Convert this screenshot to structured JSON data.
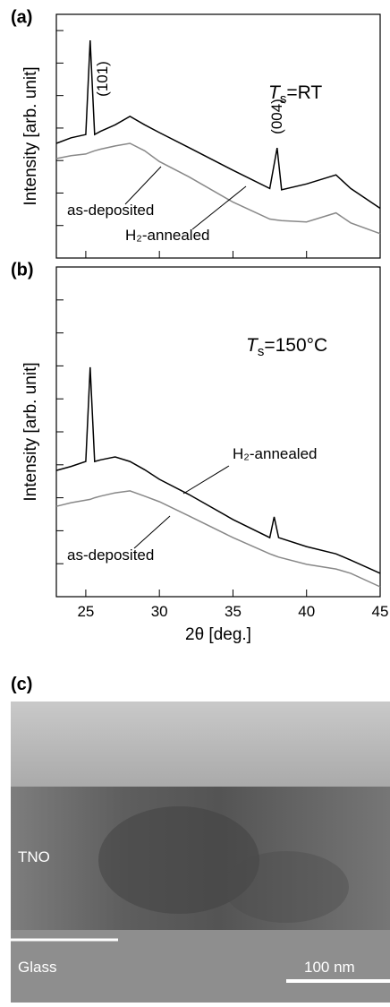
{
  "chart_data": [
    {
      "type": "line",
      "panel": "(a)",
      "ylabel": "Intensity [arb. unit]",
      "xlim": [
        23,
        45
      ],
      "xticks": [
        25,
        30,
        35,
        40,
        45
      ],
      "ylim": [
        0,
        7.5
      ],
      "yticks": [
        1,
        2,
        3,
        4,
        5,
        6,
        7
      ],
      "peak_labels": [
        "(101)",
        "(004)"
      ],
      "condition": {
        "symbol": "T",
        "subscript": "s",
        "text": "=RT"
      },
      "x": [
        23,
        24,
        25,
        25.3,
        25.6,
        26,
        27,
        28,
        29,
        30,
        32,
        35,
        37.5,
        38,
        38.3,
        40,
        42,
        43,
        45
      ],
      "series": [
        {
          "name": "H₂-annealed",
          "color": "#000000",
          "values": [
            3.53,
            3.7,
            3.8,
            6.7,
            3.8,
            3.9,
            4.1,
            4.36,
            4.1,
            3.86,
            3.4,
            2.7,
            2.14,
            3.39,
            2.1,
            2.28,
            2.56,
            2.14,
            1.53
          ]
        },
        {
          "name": "as-deposited",
          "color": "#888888",
          "values": [
            3.06,
            3.15,
            3.2,
            3.25,
            3.3,
            3.35,
            3.45,
            3.53,
            3.3,
            2.97,
            2.5,
            1.72,
            1.2,
            1.17,
            1.15,
            1.11,
            1.39,
            1.08,
            0.75
          ]
        }
      ]
    },
    {
      "type": "line",
      "panel": "(b)",
      "ylabel": "Intensity [arb. unit]",
      "xlabel": "2θ [deg.]",
      "xlim": [
        23,
        45
      ],
      "xticks": [
        25,
        30,
        35,
        40,
        45
      ],
      "ylim": [
        0,
        10
      ],
      "yticks": [
        1,
        2,
        3,
        4,
        5,
        6,
        7,
        8,
        9
      ],
      "condition": {
        "symbol": "T",
        "subscript": "s",
        "text": "=150°C"
      },
      "x": [
        23,
        24,
        25,
        25.3,
        25.6,
        26,
        27,
        28,
        29,
        30,
        32,
        35,
        37.5,
        37.8,
        38.1,
        40,
        42,
        43,
        45
      ],
      "series": [
        {
          "name": "H₂-annealed",
          "color": "#000000",
          "values": [
            3.83,
            3.95,
            4.1,
            6.96,
            4.1,
            4.15,
            4.24,
            4.1,
            3.85,
            3.56,
            3.1,
            2.34,
            1.79,
            2.42,
            1.79,
            1.52,
            1.3,
            1.11,
            0.71
          ]
        },
        {
          "name": "as-deposited",
          "color": "#888888",
          "values": [
            2.74,
            2.85,
            2.93,
            2.95,
            3.0,
            3.05,
            3.15,
            3.21,
            3.05,
            2.88,
            2.45,
            1.79,
            1.3,
            1.25,
            1.2,
            0.98,
            0.84,
            0.71,
            0.3
          ]
        }
      ]
    }
  ],
  "image": {
    "panel": "(c)",
    "layers": [
      "TNO",
      "Glass"
    ],
    "scale_bar": "100 nm"
  }
}
